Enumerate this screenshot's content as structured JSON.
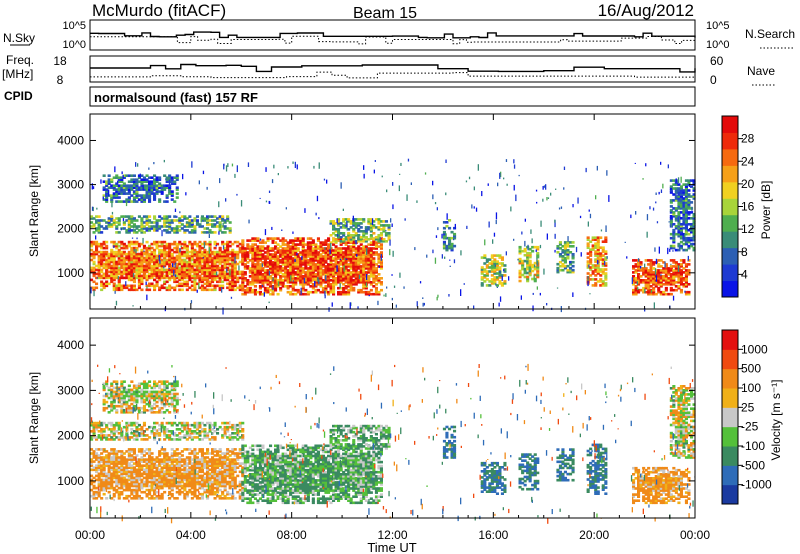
{
  "header": {
    "station": "McMurdo (fitACF)",
    "beam": "Beam 15",
    "date": "16/Aug/2012"
  },
  "noise_panel": {
    "left_label": "N.Sky",
    "left_ticks": [
      "10^5",
      "10^0"
    ],
    "right_ticks": [
      "10^5",
      "10^0"
    ],
    "right_label": "N.Search"
  },
  "freq_panel": {
    "left_label_line1": "Freq.",
    "left_label_line2": "[MHz]",
    "left_ticks": [
      "18",
      "8"
    ],
    "right_ticks": [
      "60",
      "0"
    ],
    "right_label": "Nave"
  },
  "cpid": {
    "label": "CPID",
    "text": "normalsound (fast) 157 RF"
  },
  "x_axis": {
    "ticks": [
      "00:00",
      "04:00",
      "08:00",
      "12:00",
      "16:00",
      "20:00",
      "00:00"
    ],
    "label": "Time UT"
  },
  "chart_data": [
    {
      "type": "heatmap",
      "quantity": "Power",
      "ylabel": "Slant Range [km]",
      "yticks": [
        "1000",
        "2000",
        "3000",
        "4000"
      ],
      "ylim": [
        180,
        4600
      ],
      "xlim_hours": [
        0,
        24
      ],
      "colorbar": {
        "label": "Power [dB]",
        "ticks": [
          "28",
          "24",
          "20",
          "16",
          "12",
          "8",
          "4"
        ],
        "range": [
          0,
          32
        ],
        "colors": [
          "#0a14e6",
          "#1e3ad2",
          "#2c5fb4",
          "#3a8c78",
          "#4fae4f",
          "#a8d43a",
          "#f0d020",
          "#f6a018",
          "#f66a10",
          "#ee2a0a",
          "#e40a0a"
        ]
      },
      "echo_regions": [
        {
          "t0": 0.0,
          "t1": 6.0,
          "r0": 600,
          "r1": 1700,
          "level": 24
        },
        {
          "t0": 0.0,
          "t1": 5.5,
          "r0": 1900,
          "r1": 2300,
          "level": 12
        },
        {
          "t0": 0.5,
          "t1": 3.5,
          "r0": 2600,
          "r1": 3200,
          "level": 8
        },
        {
          "t0": 6.0,
          "t1": 11.5,
          "r0": 500,
          "r1": 1800,
          "level": 26
        },
        {
          "t0": 9.5,
          "t1": 11.8,
          "r0": 1700,
          "r1": 2200,
          "level": 14
        },
        {
          "t0": 14.0,
          "t1": 14.4,
          "r0": 1500,
          "r1": 2200,
          "level": 10
        },
        {
          "t0": 15.5,
          "t1": 16.5,
          "r0": 700,
          "r1": 1400,
          "level": 16
        },
        {
          "t0": 17.0,
          "t1": 17.8,
          "r0": 800,
          "r1": 1600,
          "level": 18
        },
        {
          "t0": 18.5,
          "t1": 19.2,
          "r0": 1000,
          "r1": 1700,
          "level": 12
        },
        {
          "t0": 19.7,
          "t1": 20.5,
          "r0": 700,
          "r1": 1800,
          "level": 22
        },
        {
          "t0": 21.5,
          "t1": 23.8,
          "r0": 500,
          "r1": 1300,
          "level": 26
        },
        {
          "t0": 23.0,
          "t1": 24.0,
          "r0": 1500,
          "r1": 3100,
          "level": 8
        }
      ]
    },
    {
      "type": "heatmap",
      "quantity": "Velocity",
      "ylabel": "Slant Range [km]",
      "yticks": [
        "1000",
        "2000",
        "3000",
        "4000"
      ],
      "ylim": [
        180,
        4600
      ],
      "xlim_hours": [
        0,
        24
      ],
      "colorbar": {
        "label": "Velocity [m s⁻¹]",
        "ticks": [
          "1000",
          "500",
          "100",
          "25",
          "-25",
          "-100",
          "-500",
          "-1000"
        ],
        "colors": [
          "#1a3aa0",
          "#2e6cb8",
          "#3a8a60",
          "#54c03a",
          "#c8c8c8",
          "#f0b018",
          "#f08a18",
          "#f04a10",
          "#e41010"
        ]
      },
      "echo_regions": [
        {
          "t0": 0.0,
          "t1": 6.0,
          "r0": 600,
          "r1": 1700,
          "velocity": 100
        },
        {
          "t0": 0.0,
          "t1": 6.0,
          "r0": 1900,
          "r1": 2300,
          "velocity": 0
        },
        {
          "t0": 0.5,
          "t1": 3.5,
          "r0": 2500,
          "r1": 3200,
          "velocity": 0
        },
        {
          "t0": 6.0,
          "t1": 11.5,
          "r0": 500,
          "r1": 1800,
          "velocity": -100
        },
        {
          "t0": 9.5,
          "t1": 11.8,
          "r0": 1700,
          "r1": 2200,
          "velocity": -100
        },
        {
          "t0": 14.0,
          "t1": 14.4,
          "r0": 1500,
          "r1": 2200,
          "velocity": -300
        },
        {
          "t0": 15.5,
          "t1": 16.5,
          "r0": 700,
          "r1": 1400,
          "velocity": -300
        },
        {
          "t0": 17.0,
          "t1": 17.8,
          "r0": 800,
          "r1": 1600,
          "velocity": -300
        },
        {
          "t0": 18.5,
          "t1": 19.2,
          "r0": 1000,
          "r1": 1700,
          "velocity": -300
        },
        {
          "t0": 19.7,
          "t1": 20.5,
          "r0": 700,
          "r1": 1800,
          "velocity": -300
        },
        {
          "t0": 21.5,
          "t1": 23.8,
          "r0": 500,
          "r1": 1300,
          "velocity": 100
        },
        {
          "t0": 23.0,
          "t1": 24.0,
          "r0": 1500,
          "r1": 3100,
          "velocity": 0
        }
      ]
    }
  ]
}
